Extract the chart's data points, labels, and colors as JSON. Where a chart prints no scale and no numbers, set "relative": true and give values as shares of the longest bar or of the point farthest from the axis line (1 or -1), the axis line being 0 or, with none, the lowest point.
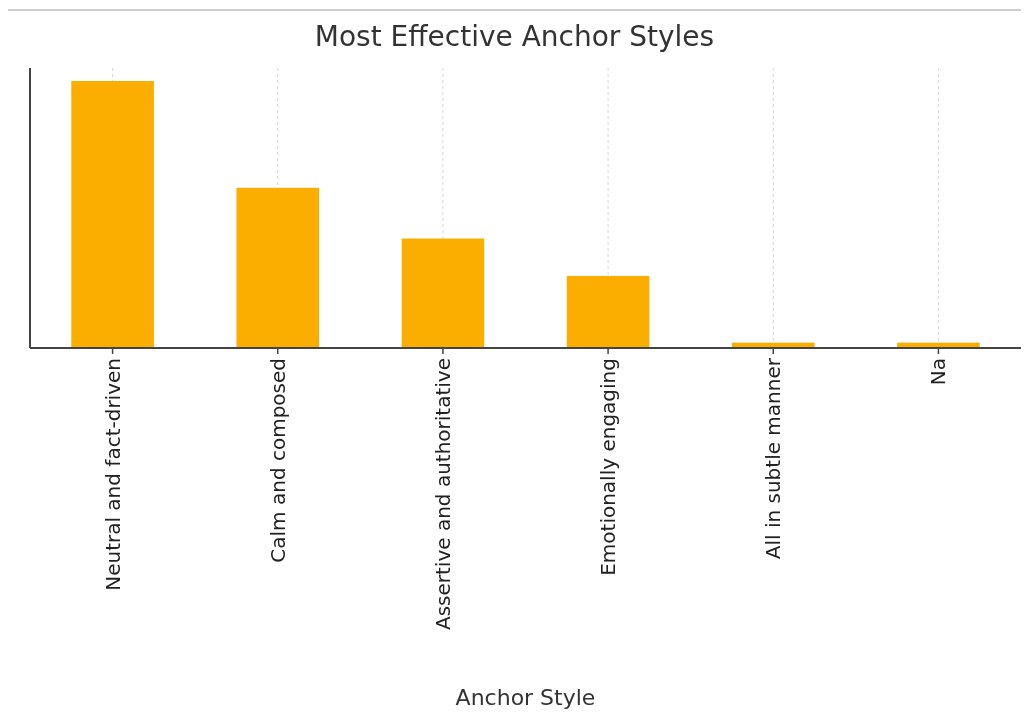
{
  "chart_data": {
    "type": "bar",
    "title": "Most Effective Anchor Styles",
    "xlabel": "Anchor Style",
    "categories": [
      "Neutral and fact-driven",
      "Calm and composed",
      "Assertive and authoritative",
      "Emotionally engaging",
      "All in subtle manner",
      "Na"
    ],
    "values": [
      1,
      0.6,
      0.41,
      0.27,
      0.02,
      0.02
    ],
    "color": "#fbae00",
    "relative": true,
    "grid": "x"
  }
}
